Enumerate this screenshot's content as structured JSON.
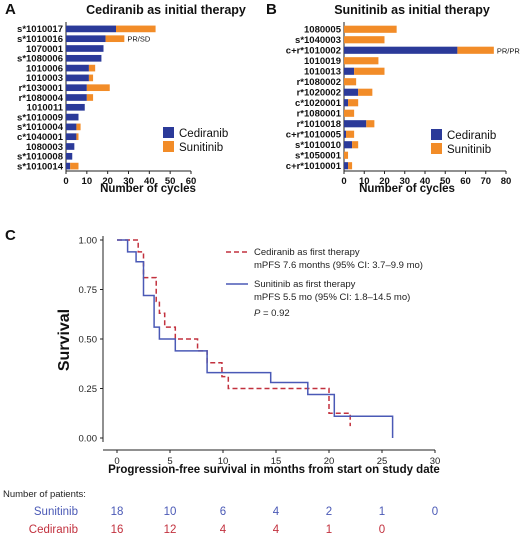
{
  "colors": {
    "cediranib": "#2b3a99",
    "sunitinib": "#f28c28",
    "km_sunitinib": "#4a59b6",
    "km_cediranib": "#c2313e",
    "axis": "#222222"
  },
  "panel_a": {
    "letter": "A",
    "title": "Cediranib as initial therapy",
    "xlabel": "Number of cycles",
    "annotation": "PR/SD",
    "legend": [
      "Cediranib",
      "Sunitinib"
    ]
  },
  "panel_b": {
    "letter": "B",
    "title": "Sunitinib as initial therapy",
    "xlabel": "Number of cycles",
    "annotation": "PR/PR",
    "legend": [
      "Cediranib",
      "Sunitinib"
    ]
  },
  "panel_c": {
    "letter": "C",
    "ylabel": "Survival",
    "xlabel": "Progression-free survival in months from start on study date",
    "legend_cediranib_line1": "Cediranib as first therapy",
    "legend_cediranib_line2": "mPFS 7.6 months (95% CI: 3.7–9.9 mo)",
    "legend_sunitinib_line1": "Sunitinib as first therapy",
    "legend_sunitinib_line2": "mPFS 5.5 mo (95% CI: 1.8–14.5 mo)",
    "pvalue_label": "P",
    "pvalue_text": " = 0.92"
  },
  "risk_table": {
    "title": "Number of patients:",
    "rows": [
      {
        "name": "Sunitinib",
        "counts": [
          "18",
          "10",
          "6",
          "4",
          "2",
          "1",
          "0"
        ]
      },
      {
        "name": "Cediranib",
        "counts": [
          "16",
          "12",
          "4",
          "4",
          "1",
          "0"
        ]
      }
    ]
  },
  "chart_data": [
    {
      "type": "bar",
      "orientation": "horizontal",
      "stacked": true,
      "title": "Cediranib as initial therapy",
      "xlabel": "Number of cycles",
      "xlim": [
        0,
        60
      ],
      "xticks": [
        0,
        10,
        20,
        30,
        40,
        50,
        60
      ],
      "categories": [
        "s*1010017",
        "s*1010016",
        "1070001",
        "s*1080006",
        "1010006",
        "1010003",
        "r*1030001",
        "r*1080004",
        "1010011",
        "s*1010009",
        "s*1010004",
        "c*1040001",
        "1080003",
        "s*1010008",
        "s*1010014"
      ],
      "series": [
        {
          "name": "Cediranib",
          "values": [
            24,
            19,
            18,
            17,
            11,
            11,
            10,
            10,
            9,
            6,
            5,
            5,
            4,
            3,
            2
          ]
        },
        {
          "name": "Sunitinib",
          "values": [
            19,
            9,
            0,
            0,
            3,
            2,
            11,
            3,
            0,
            0,
            2,
            1,
            0,
            0,
            4
          ]
        }
      ],
      "annotations": [
        {
          "text": "PR/SD",
          "category": "s*1010016"
        }
      ]
    },
    {
      "type": "bar",
      "orientation": "horizontal",
      "stacked": true,
      "title": "Sunitinib as initial therapy",
      "xlabel": "Number of cycles",
      "xlim": [
        0,
        80
      ],
      "xticks": [
        0,
        10,
        20,
        30,
        40,
        50,
        60,
        70,
        80
      ],
      "categories": [
        "1080005",
        "s*1040003",
        "c+r*1010002",
        "1010019",
        "1010013",
        "r*1080002",
        "r*1020002",
        "c*1020001",
        "r*1080001",
        "r*1010018",
        "c+r*1010005",
        "s*1010010",
        "s*1050001",
        "c+r*1010001"
      ],
      "series": [
        {
          "name": "Cediranib",
          "values": [
            0,
            0,
            56,
            0,
            5,
            0,
            7,
            2,
            0,
            11,
            1,
            4,
            0,
            2
          ]
        },
        {
          "name": "Sunitinib",
          "values": [
            26,
            20,
            18,
            17,
            15,
            6,
            7,
            5,
            5,
            4,
            4,
            3,
            2,
            2
          ]
        }
      ],
      "annotations": [
        {
          "text": "PR/PR",
          "category": "c+r*1010002"
        }
      ]
    },
    {
      "type": "line",
      "subtype": "kaplan-meier",
      "xlabel": "Progression-free survival in months from start on study date",
      "ylabel": "Survival",
      "xlim": [
        0,
        30
      ],
      "ylim": [
        0,
        1
      ],
      "xticks": [
        0,
        5,
        10,
        15,
        20,
        25,
        30
      ],
      "yticks": [
        0.0,
        0.25,
        0.5,
        0.75,
        1.0
      ],
      "series": [
        {
          "name": "Cediranib as first therapy",
          "style": "dashed",
          "x": [
            0,
            1.5,
            2,
            2.5,
            3.7,
            4,
            4.5,
            5.5,
            7.6,
            8.5,
            9.9,
            10.5,
            17.5,
            20,
            22
          ],
          "y": [
            1.0,
            1.0,
            0.94,
            0.81,
            0.69,
            0.63,
            0.56,
            0.5,
            0.44,
            0.38,
            0.31,
            0.25,
            0.25,
            0.125,
            0.06
          ]
        },
        {
          "name": "Sunitinib as first therapy",
          "style": "solid",
          "x": [
            0,
            1,
            1.8,
            2.5,
            3.5,
            4,
            5.5,
            8.5,
            14.5,
            18,
            20.5,
            26
          ],
          "y": [
            1.0,
            0.94,
            0.89,
            0.72,
            0.56,
            0.5,
            0.44,
            0.33,
            0.28,
            0.22,
            0.11,
            0.0
          ]
        }
      ]
    }
  ]
}
